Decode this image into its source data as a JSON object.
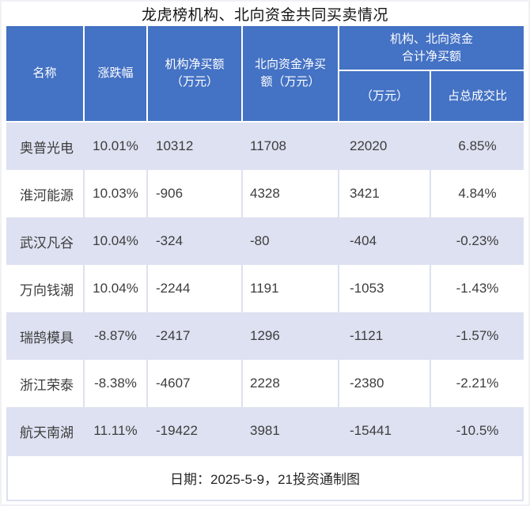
{
  "title": "龙虎榜机构、北向资金共同买卖情况",
  "header": {
    "name": "名称",
    "change": "涨跌幅",
    "inst": "机构净买额\n（万元）",
    "north": "北向资金净买\n额（万元）",
    "group": "机构、北向资金\n合计净买额",
    "total": "（万元）",
    "ratio": "占总成交比"
  },
  "table": {
    "rows": [
      {
        "name": "奥普光电",
        "change": "10.01%",
        "inst": "10312",
        "north": "11708",
        "total": "22020",
        "ratio": "6.85%"
      },
      {
        "name": "淮河能源",
        "change": "10.03%",
        "inst": "-906",
        "north": "4328",
        "total": "3421",
        "ratio": "4.84%"
      },
      {
        "name": "武汉凡谷",
        "change": "10.04%",
        "inst": "-324",
        "north": "-80",
        "total": "-404",
        "ratio": "-0.23%"
      },
      {
        "name": "万向钱潮",
        "change": "10.04%",
        "inst": "-2244",
        "north": "1191",
        "total": "-1053",
        "ratio": "-1.43%"
      },
      {
        "name": "瑞鹄模具",
        "change": "-8.87%",
        "inst": "-2417",
        "north": "1296",
        "total": "-1121",
        "ratio": "-1.57%"
      },
      {
        "name": "浙江荣泰",
        "change": "-8.38%",
        "inst": "-4607",
        "north": "2228",
        "total": "-2380",
        "ratio": "-2.21%"
      },
      {
        "name": "航天南湖",
        "change": "11.11%",
        "inst": "-19422",
        "north": "3981",
        "total": "-15441",
        "ratio": "-10.5%"
      }
    ]
  },
  "footer": "日期：2025-5-9，21投资通制图",
  "colors": {
    "header_bg": "#4472c4",
    "header_text": "#ffffff",
    "band_bg": "#dde1f1",
    "body_text": "#3d3d3d",
    "title_text": "#151515"
  },
  "chart_data": {
    "type": "table",
    "title": "龙虎榜机构、北向资金共同买卖情况",
    "columns": [
      "名称",
      "涨跌幅",
      "机构净买额（万元）",
      "北向资金净买额（万元）",
      "机构、北向资金合计净买额（万元）",
      "机构、北向资金合计净买额占总成交比"
    ],
    "rows": [
      [
        "奥普光电",
        "10.01%",
        10312,
        11708,
        22020,
        "6.85%"
      ],
      [
        "淮河能源",
        "10.03%",
        -906,
        4328,
        3421,
        "4.84%"
      ],
      [
        "武汉凡谷",
        "10.04%",
        -324,
        -80,
        -404,
        "-0.23%"
      ],
      [
        "万向钱潮",
        "10.04%",
        -2244,
        1191,
        -1053,
        "-1.43%"
      ],
      [
        "瑞鹄模具",
        "-8.87%",
        -2417,
        1296,
        -1121,
        "-1.57%"
      ],
      [
        "浙江荣泰",
        "-8.38%",
        -4607,
        2228,
        -2380,
        "-2.21%"
      ],
      [
        "航天南湖",
        "11.11%",
        -19422,
        3981,
        -15441,
        "-10.5%"
      ]
    ],
    "footer": "日期：2025-5-9，21投资通制图",
    "layout_hints": {
      "banded_rows": true,
      "band_color": "#dde1f1",
      "header_color": "#4472c4",
      "grouped_last_two_columns": true
    }
  }
}
